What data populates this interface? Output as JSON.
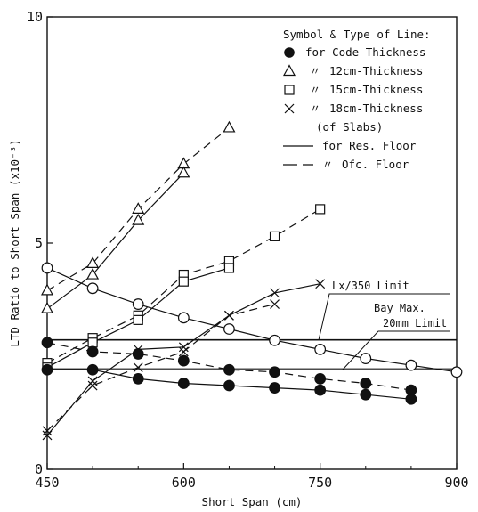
{
  "chart_data": {
    "type": "line",
    "xlabel": "Short Span (cm)",
    "ylabel": "LTD Ratio to Short Span (x10⁻³)",
    "xlim": [
      450,
      900
    ],
    "ylim": [
      0,
      10
    ],
    "xticks": [
      {
        "value": 450,
        "label": "450"
      },
      {
        "value": 600,
        "label": "600"
      },
      {
        "value": 750,
        "label": "750"
      },
      {
        "value": 900,
        "label": "900"
      }
    ],
    "yticks": [
      {
        "value": 0,
        "label": "0"
      },
      {
        "value": 5,
        "label": "5"
      },
      {
        "value": 10,
        "label": "10"
      }
    ],
    "grid": false,
    "legend": {
      "title": "Symbol & Type of Line:",
      "entries": [
        {
          "symbol": "filled-circle",
          "mark": "",
          "text": "for Code Thickness"
        },
        {
          "symbol": "triangle",
          "mark": "〃",
          "text": "12cm-Thickness"
        },
        {
          "symbol": "square",
          "mark": "〃",
          "text": "15cm-Thickness"
        },
        {
          "symbol": "cross",
          "mark": "〃",
          "text": "18cm-Thickness"
        },
        {
          "symbol": "none",
          "mark": "",
          "text": "(of Slabs)"
        },
        {
          "symbol": "dash",
          "mark": "",
          "text": "for Res. Floor"
        },
        {
          "symbol": "longdash",
          "mark": "〃",
          "text": "Ofc. Floor"
        }
      ],
      "placement": "top-right"
    },
    "series": [
      {
        "symbol": "triangle",
        "line": "dashed",
        "x": [
          450,
          500,
          550,
          600,
          650
        ],
        "y": [
          3.95,
          4.55,
          5.75,
          6.75,
          7.55
        ]
      },
      {
        "symbol": "triangle",
        "line": "solid",
        "x": [
          450,
          500,
          550,
          600
        ],
        "y": [
          3.55,
          4.3,
          5.5,
          6.55
        ]
      },
      {
        "symbol": "square",
        "line": "dashed",
        "x": [
          450,
          500,
          550,
          600,
          650,
          700,
          750
        ],
        "y": [
          2.35,
          2.9,
          3.4,
          4.3,
          4.6,
          5.15,
          5.75
        ]
      },
      {
        "symbol": "square",
        "line": "solid",
        "x": [
          450,
          500,
          550,
          600,
          650
        ],
        "y": [
          2.25,
          2.8,
          3.3,
          4.15,
          4.45
        ]
      },
      {
        "symbol": "cross",
        "line": "solid",
        "x": [
          450,
          500,
          550,
          600,
          650,
          700,
          750
        ],
        "y": [
          0.75,
          1.95,
          2.65,
          2.7,
          3.4,
          3.9,
          4.1
        ]
      },
      {
        "symbol": "cross",
        "line": "dashed",
        "x": [
          450,
          500,
          550,
          600,
          650,
          700
        ],
        "y": [
          0.85,
          1.85,
          2.25,
          2.6,
          3.4,
          3.65
        ]
      },
      {
        "symbol": "open-circle",
        "line": "solid",
        "x": [
          450,
          500,
          550,
          600,
          650,
          700,
          750,
          800,
          850,
          900
        ],
        "y": [
          4.45,
          4.0,
          3.65,
          3.35,
          3.1,
          2.85,
          2.65,
          2.45,
          2.3,
          2.15
        ]
      },
      {
        "symbol": "filled-circle",
        "line": "dashed",
        "x": [
          450,
          500,
          550,
          600,
          650,
          700,
          750,
          800,
          850
        ],
        "y": [
          2.8,
          2.6,
          2.55,
          2.4,
          2.2,
          2.15,
          2.0,
          1.9,
          1.75
        ]
      },
      {
        "symbol": "filled-circle",
        "line": "solid",
        "x": [
          450,
          500,
          550,
          600,
          650,
          700,
          750,
          800,
          850
        ],
        "y": [
          2.2,
          2.2,
          2.0,
          1.9,
          1.85,
          1.8,
          1.75,
          1.65,
          1.55
        ]
      }
    ],
    "limit_lines": [
      {
        "label": "Lx/350 Limit",
        "x": [
          450,
          900
        ],
        "y": [
          2.86,
          2.86
        ]
      },
      {
        "label_lines": [
          "Bay Max.",
          "20mm Limit"
        ],
        "x": [
          450,
          900
        ],
        "y": [
          2.22,
          2.22
        ]
      }
    ]
  }
}
